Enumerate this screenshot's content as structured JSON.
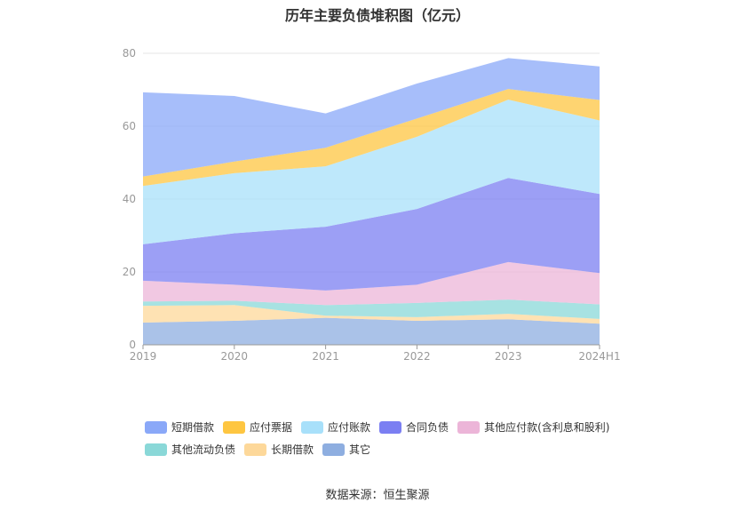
{
  "chart_data": {
    "type": "area",
    "stacked": true,
    "title": "历年主要负债堆积图（亿元）",
    "categories": [
      "2019",
      "2020",
      "2021",
      "2022",
      "2023",
      "2024H1"
    ],
    "ylim": [
      0,
      80
    ],
    "yticks": [
      0,
      20,
      40,
      60,
      80
    ],
    "grid": true,
    "legend_position": "bottom",
    "series": [
      {
        "name": "其它",
        "color": "#8eaee0",
        "values": [
          6.1,
          6.6,
          7.4,
          6.6,
          7.0,
          5.8
        ]
      },
      {
        "name": "长期借款",
        "color": "#fdd89a",
        "values": [
          4.6,
          4.3,
          0.6,
          1.0,
          1.5,
          1.3
        ]
      },
      {
        "name": "其他流动负债",
        "color": "#8ad8d8",
        "values": [
          1.2,
          1.2,
          2.9,
          3.9,
          3.9,
          4.0
        ]
      },
      {
        "name": "其他应付款(含利息和股利)",
        "color": "#ecb5d8",
        "values": [
          5.7,
          4.4,
          4.0,
          5.0,
          10.3,
          8.6
        ]
      },
      {
        "name": "合同负债",
        "color": "#7b7ff2",
        "values": [
          10.0,
          14.1,
          17.5,
          20.8,
          23.1,
          21.7
        ]
      },
      {
        "name": "应付账款",
        "color": "#a8e0fa",
        "values": [
          16.0,
          16.5,
          16.6,
          19.8,
          21.5,
          20.2
        ]
      },
      {
        "name": "应付票据",
        "color": "#fec641",
        "values": [
          2.6,
          3.2,
          5.1,
          5.0,
          2.9,
          5.6
        ]
      },
      {
        "name": "短期借款",
        "color": "#8aa8f8",
        "values": [
          23.1,
          18.0,
          9.4,
          9.6,
          8.5,
          9.2
        ]
      }
    ]
  },
  "legend": {
    "row1": [
      {
        "label": "短期借款",
        "color": "#8aa8f8"
      },
      {
        "label": "应付票据",
        "color": "#fec641"
      },
      {
        "label": "应付账款",
        "color": "#a8e0fa"
      },
      {
        "label": "合同负债",
        "color": "#7b7ff2"
      },
      {
        "label": "其他应付款(含利息和股利)",
        "color": "#ecb5d8"
      }
    ],
    "row2": [
      {
        "label": "其他流动负债",
        "color": "#8ad8d8"
      },
      {
        "label": "长期借款",
        "color": "#fdd89a"
      },
      {
        "label": "其它",
        "color": "#8eaee0"
      }
    ]
  },
  "source": "数据来源：恒生聚源"
}
